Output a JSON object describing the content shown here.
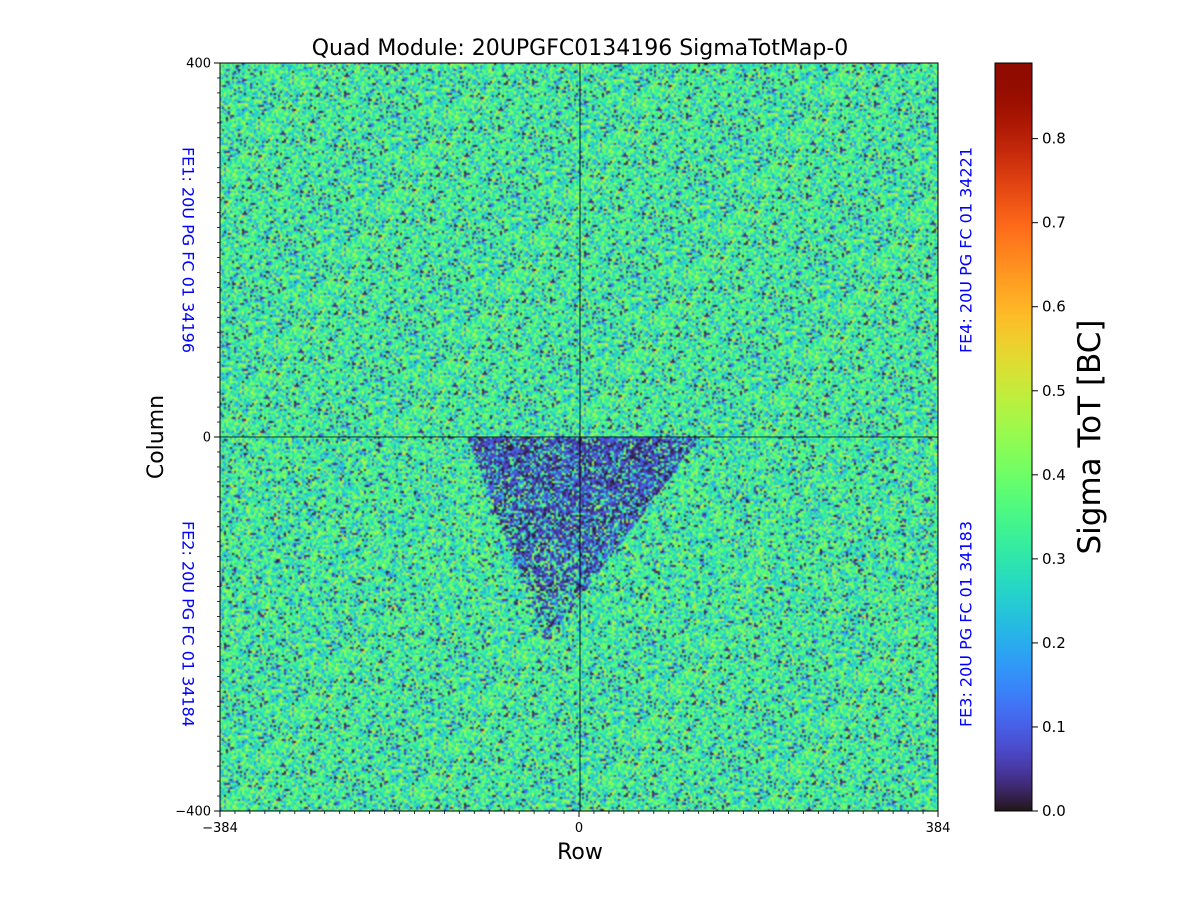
{
  "chart_data": {
    "type": "heatmap",
    "title": "Quad Module: 20UPGFC0134196 SigmaTotMap-0",
    "xlabel": "Row",
    "ylabel": "Column",
    "xlim": [
      -384,
      384
    ],
    "ylim": [
      -400,
      400
    ],
    "x_ticks": [
      {
        "value": -384,
        "label": "−384"
      },
      {
        "value": 0,
        "label": "0"
      },
      {
        "value": 384,
        "label": "384"
      }
    ],
    "y_ticks": [
      {
        "value": -400,
        "label": "−400"
      },
      {
        "value": 0,
        "label": "0"
      },
      {
        "value": 400,
        "label": "400"
      }
    ],
    "colorbar": {
      "label": "Sigma ToT [BC]",
      "colormap": "turbo",
      "range": [
        0.0,
        0.89
      ],
      "ticks": [
        "0.0",
        "0.1",
        "0.2",
        "0.3",
        "0.4",
        "0.5",
        "0.6",
        "0.7",
        "0.8"
      ]
    },
    "chip_labels": [
      {
        "text": "FE1: 20U PG FC 01 34196",
        "side": "left",
        "quadrant": "top-left"
      },
      {
        "text": "FE2: 20U PG FC 01 34184",
        "side": "left",
        "quadrant": "bottom-left"
      },
      {
        "text": "FE4: 20U PG FC 01 34221",
        "side": "right",
        "quadrant": "top-right"
      },
      {
        "text": "FE3: 20U PG FC 01 34183",
        "side": "right",
        "quadrant": "bottom-right"
      }
    ],
    "chip_label_color": "#0000ff",
    "distribution": {
      "typical_value": 0.33,
      "spread": 0.12,
      "low_region": {
        "x_range": [
          -120,
          130
        ],
        "y_range": [
          -220,
          0
        ]
      }
    }
  }
}
